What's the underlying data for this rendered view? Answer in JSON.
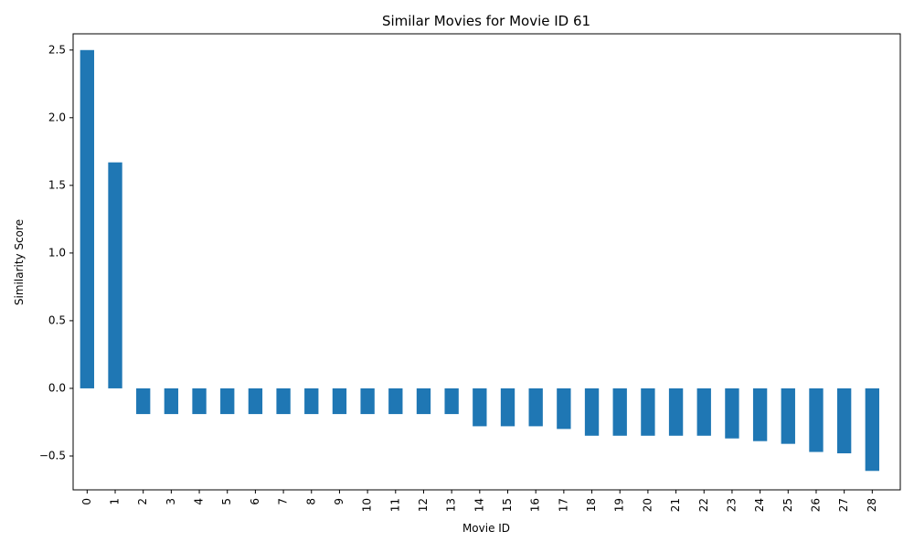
{
  "chart_data": {
    "type": "bar",
    "title": "Similar Movies for Movie ID 61",
    "xlabel": "Movie ID",
    "ylabel": "Similarity Score",
    "categories": [
      "0",
      "1",
      "2",
      "3",
      "4",
      "5",
      "6",
      "7",
      "8",
      "9",
      "10",
      "11",
      "12",
      "13",
      "14",
      "15",
      "16",
      "17",
      "18",
      "19",
      "20",
      "21",
      "22",
      "23",
      "24",
      "25",
      "26",
      "27",
      "28"
    ],
    "values": [
      2.5,
      1.67,
      -0.19,
      -0.19,
      -0.19,
      -0.19,
      -0.19,
      -0.19,
      -0.19,
      -0.19,
      -0.19,
      -0.19,
      -0.19,
      -0.19,
      -0.28,
      -0.28,
      -0.28,
      -0.3,
      -0.35,
      -0.35,
      -0.35,
      -0.35,
      -0.35,
      -0.37,
      -0.39,
      -0.41,
      -0.47,
      -0.48,
      -0.61
    ],
    "ylim": [
      -0.75,
      2.62
    ],
    "yticks": [
      -0.5,
      0.0,
      0.5,
      1.0,
      1.5,
      2.0,
      2.5
    ],
    "ytick_labels": [
      "−0.5",
      "0.0",
      "0.5",
      "1.0",
      "1.5",
      "2.0",
      "2.5"
    ],
    "bar_color": "#1f77b4",
    "grid": false,
    "legend": false
  }
}
